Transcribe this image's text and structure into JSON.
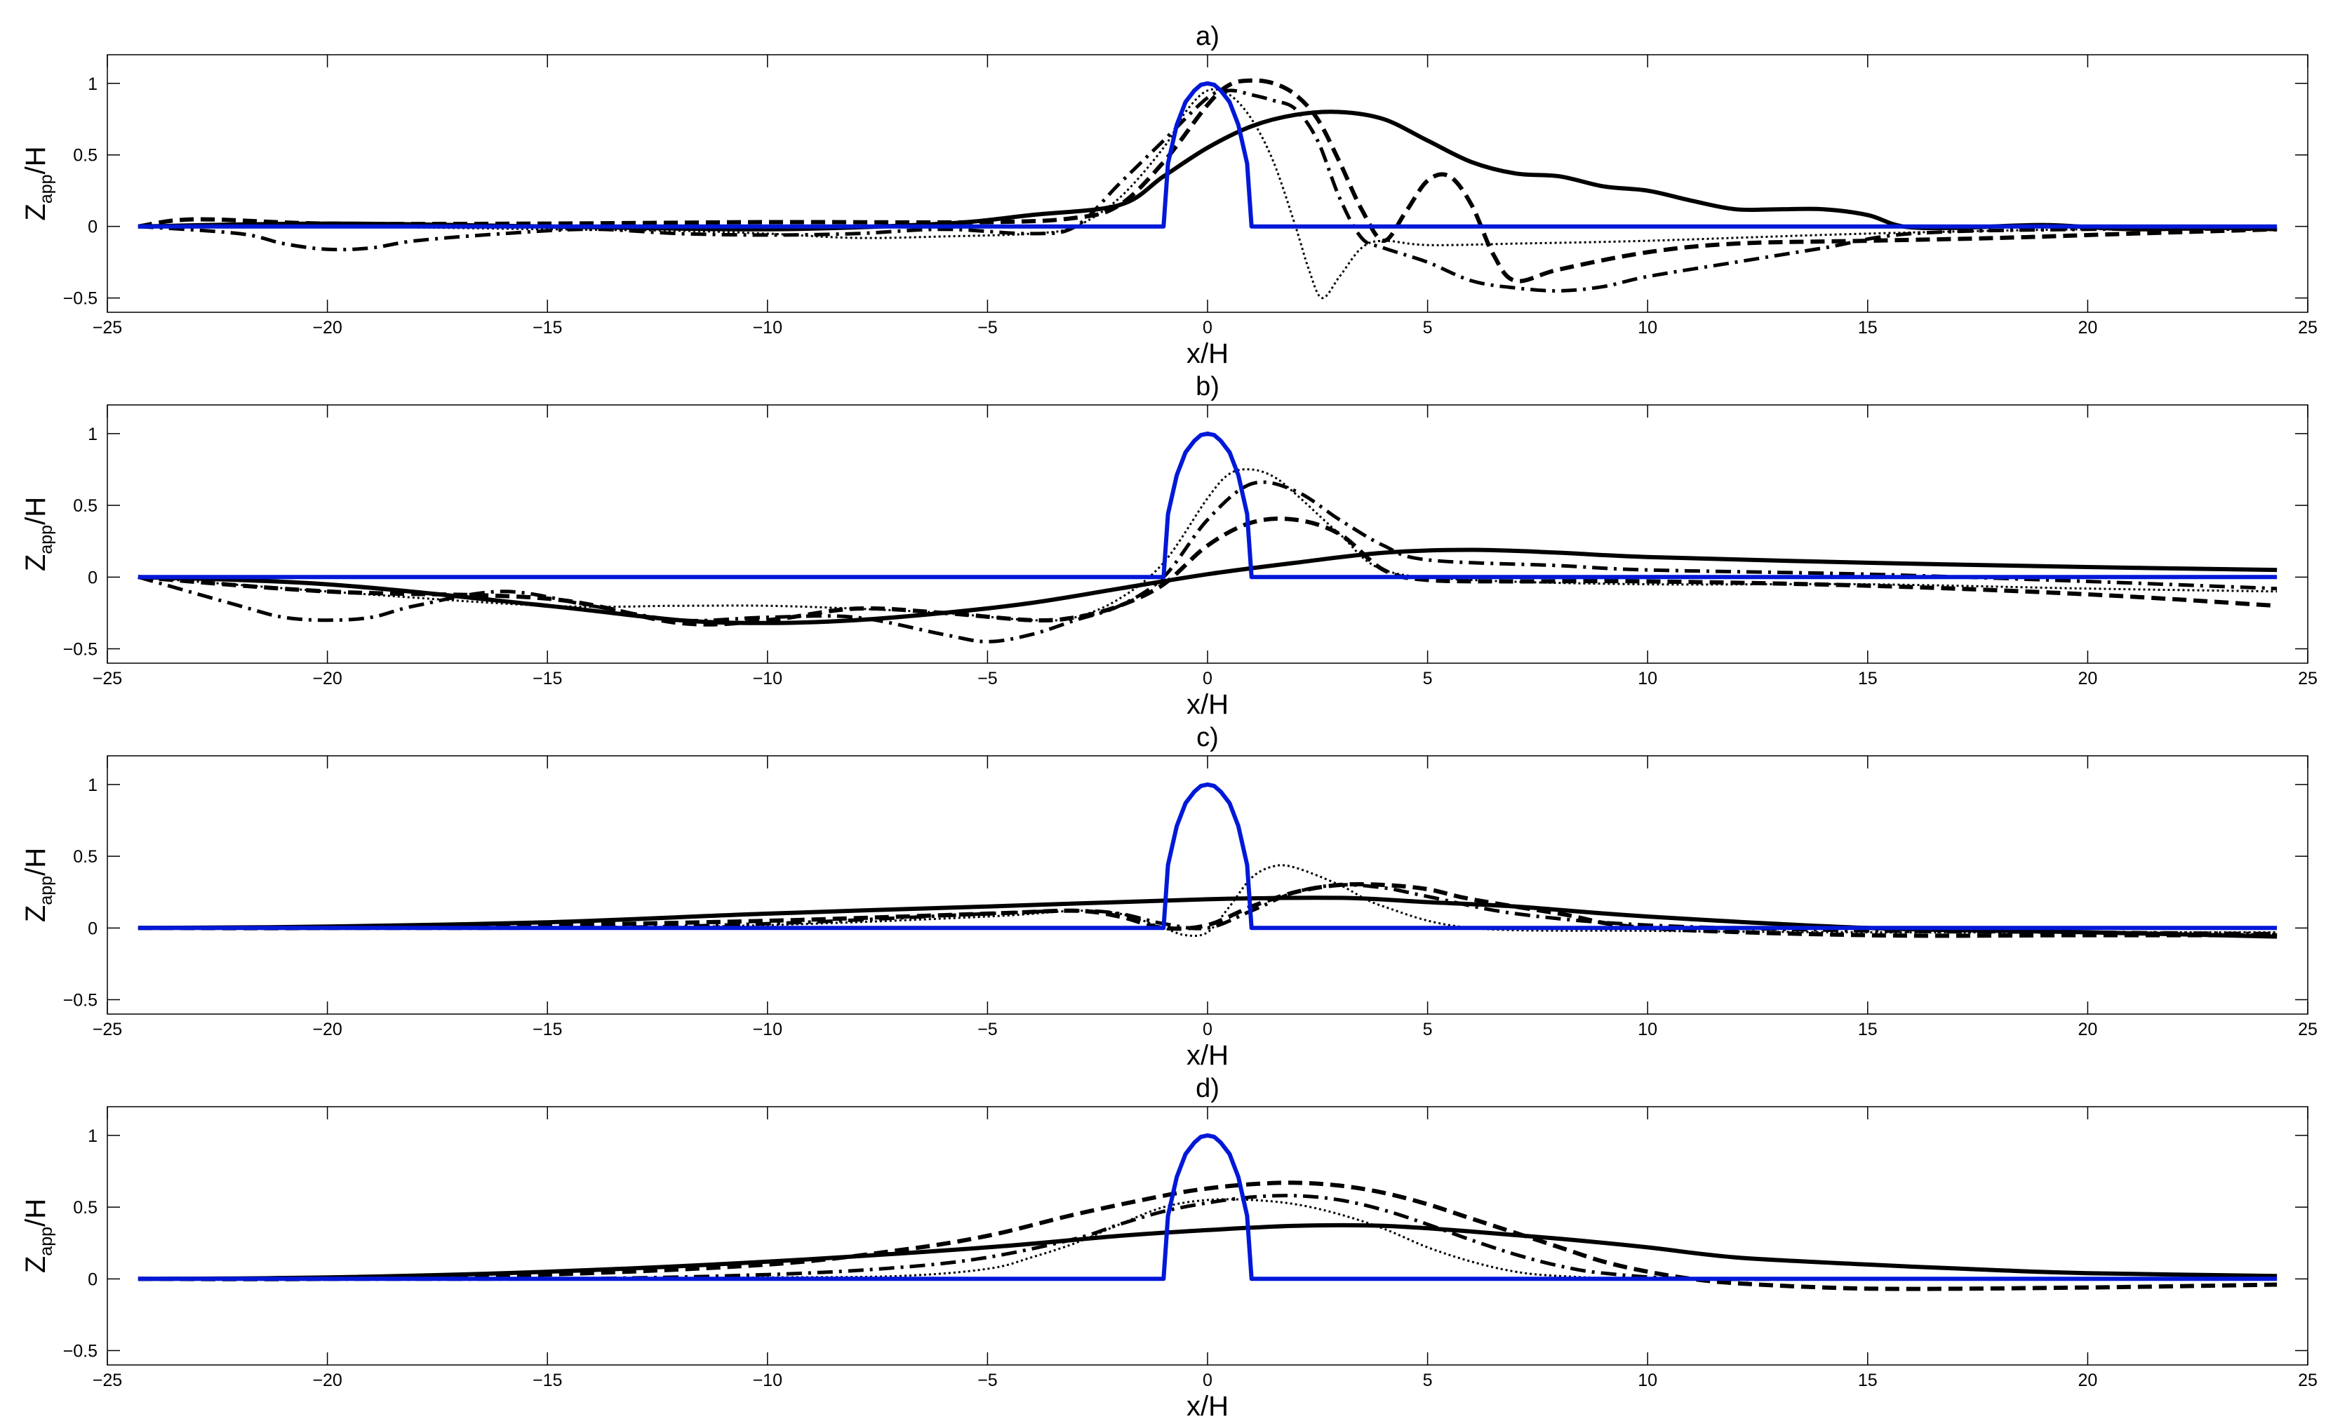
{
  "chart_data": [
    {
      "type": "line",
      "title": "a)",
      "xlabel": "x/H",
      "ylabel": "Z_app/H",
      "xlim": [
        -25,
        25
      ],
      "ylim": [
        -0.6,
        1.2
      ],
      "xticks": [
        -25,
        -20,
        -15,
        -10,
        -5,
        0,
        5,
        10,
        15,
        20,
        25
      ],
      "yticks": [
        -0.5,
        0,
        0.5,
        1
      ],
      "series": [
        {
          "name": "obstacle",
          "style": "blue",
          "x": [
            -24.3,
            -1.05,
            -1,
            -0.9,
            -0.7,
            -0.5,
            -0.3,
            -0.15,
            0,
            0.15,
            0.3,
            0.5,
            0.7,
            0.9,
            1,
            1.05,
            24.3
          ],
          "y": [
            0,
            0,
            0,
            0.44,
            0.71,
            0.87,
            0.95,
            0.99,
            1,
            0.99,
            0.95,
            0.87,
            0.71,
            0.44,
            0,
            0,
            0
          ]
        },
        {
          "name": "solid",
          "style": "solid",
          "x": [
            -24.3,
            -20,
            -15,
            -10,
            -6,
            -4,
            -2,
            -1,
            0,
            1,
            2,
            3,
            4,
            5,
            6,
            7,
            8,
            9,
            10,
            11,
            12,
            13,
            14,
            15,
            15.8,
            17,
            19,
            21,
            23,
            24.3
          ],
          "y": [
            0,
            0.02,
            0,
            -0.02,
            0.02,
            0.08,
            0.15,
            0.35,
            0.55,
            0.7,
            0.78,
            0.8,
            0.75,
            0.6,
            0.45,
            0.37,
            0.35,
            0.28,
            0.25,
            0.18,
            0.12,
            0.12,
            0.12,
            0.08,
            0,
            -0.01,
            0.01,
            -0.02,
            -0.01,
            -0.02
          ]
        },
        {
          "name": "dashed",
          "style": "dashed",
          "x": [
            -24.3,
            -23,
            -20,
            -15,
            -10,
            -5,
            -3,
            -2,
            -1,
            0,
            0.5,
            1,
            1.5,
            2,
            2.5,
            3,
            3.5,
            4,
            4.5,
            5,
            5.5,
            6,
            6.5,
            7,
            8,
            10,
            12,
            15,
            18,
            21,
            24.3
          ],
          "y": [
            0,
            0.05,
            0.02,
            0.02,
            0.03,
            0.03,
            0.06,
            0.15,
            0.45,
            0.85,
            0.99,
            1.02,
            1.0,
            0.92,
            0.75,
            0.45,
            0.12,
            -0.1,
            0.1,
            0.32,
            0.35,
            0.15,
            -0.2,
            -0.38,
            -0.3,
            -0.18,
            -0.12,
            -0.1,
            -0.08,
            -0.05,
            -0.02
          ]
        },
        {
          "name": "dotted",
          "style": "dotted",
          "x": [
            -24.3,
            -20,
            -15,
            -12,
            -10,
            -8,
            -6,
            -4,
            -3,
            -2,
            -1,
            -0.5,
            0,
            0.5,
            1,
            1.5,
            2,
            2.3,
            2.6,
            3,
            3.5,
            4,
            5,
            7,
            10,
            15,
            20,
            24.3
          ],
          "y": [
            0,
            0,
            -0.02,
            -0.03,
            -0.05,
            -0.08,
            -0.07,
            -0.05,
            0.0,
            0.2,
            0.55,
            0.8,
            0.95,
            0.92,
            0.75,
            0.45,
            0.0,
            -0.3,
            -0.5,
            -0.35,
            -0.15,
            -0.1,
            -0.13,
            -0.12,
            -0.1,
            -0.05,
            -0.02,
            -0.02
          ]
        },
        {
          "name": "dash-dot",
          "style": "dashdot",
          "x": [
            -24.3,
            -22,
            -21,
            -20,
            -19,
            -18,
            -16,
            -14,
            -12,
            -10,
            -8,
            -6,
            -4,
            -3,
            -2,
            -1,
            0,
            0.5,
            1,
            1.5,
            2,
            2.5,
            3,
            3.5,
            4,
            5,
            6,
            7,
            8,
            9,
            10,
            12,
            14,
            16,
            20,
            24.3
          ],
          "y": [
            0,
            -0.05,
            -0.12,
            -0.16,
            -0.15,
            -0.1,
            -0.05,
            -0.02,
            -0.05,
            -0.06,
            -0.05,
            -0.02,
            -0.05,
            0.0,
            0.3,
            0.6,
            0.9,
            0.95,
            0.92,
            0.88,
            0.82,
            0.6,
            0.2,
            -0.08,
            -0.15,
            -0.25,
            -0.38,
            -0.43,
            -0.45,
            -0.42,
            -0.35,
            -0.25,
            -0.15,
            -0.05,
            -0.02,
            -0.02
          ]
        }
      ]
    },
    {
      "type": "line",
      "title": "b)",
      "xlabel": "x/H",
      "ylabel": "Z_app/H",
      "xlim": [
        -25,
        25
      ],
      "ylim": [
        -0.6,
        1.2
      ],
      "xticks": [
        -25,
        -20,
        -15,
        -10,
        -5,
        0,
        5,
        10,
        15,
        20,
        25
      ],
      "yticks": [
        -0.5,
        0,
        0.5,
        1
      ],
      "series": [
        {
          "name": "obstacle",
          "style": "blue",
          "x": [
            -24.3,
            -1.05,
            -1,
            -0.9,
            -0.7,
            -0.5,
            -0.3,
            -0.15,
            0,
            0.15,
            0.3,
            0.5,
            0.7,
            0.9,
            1,
            1.05,
            24.3
          ],
          "y": [
            0,
            0,
            0,
            0.44,
            0.71,
            0.87,
            0.95,
            0.99,
            1,
            0.99,
            0.95,
            0.87,
            0.71,
            0.44,
            0,
            0,
            0
          ]
        },
        {
          "name": "solid",
          "style": "solid",
          "x": [
            -24.3,
            -20,
            -15,
            -12,
            -10,
            -8,
            -6,
            -4,
            -2,
            0,
            2,
            4,
            6,
            8,
            10,
            15,
            20,
            24.3
          ],
          "y": [
            0,
            -0.05,
            -0.2,
            -0.3,
            -0.32,
            -0.3,
            -0.25,
            -0.18,
            -0.08,
            0.02,
            0.1,
            0.17,
            0.19,
            0.17,
            0.14,
            0.1,
            0.07,
            0.05
          ]
        },
        {
          "name": "dashed",
          "style": "dashed",
          "x": [
            -24.3,
            -20,
            -15,
            -12,
            -10,
            -8,
            -6,
            -4,
            -3,
            -2,
            -1,
            0,
            1,
            2,
            3,
            4,
            5,
            7,
            10,
            15,
            20,
            24.3
          ],
          "y": [
            0,
            -0.1,
            -0.15,
            -0.32,
            -0.3,
            -0.22,
            -0.25,
            -0.3,
            -0.28,
            -0.2,
            -0.05,
            0.22,
            0.38,
            0.4,
            0.3,
            0.05,
            -0.02,
            -0.03,
            -0.03,
            -0.06,
            -0.12,
            -0.2
          ]
        },
        {
          "name": "dotted",
          "style": "dotted",
          "x": [
            -24.3,
            -20,
            -15,
            -12,
            -10,
            -8,
            -6,
            -4,
            -3,
            -2,
            -1,
            0,
            0.5,
            1,
            1.5,
            2,
            3,
            4,
            6,
            10,
            15,
            20,
            24.3
          ],
          "y": [
            0,
            -0.1,
            -0.2,
            -0.2,
            -0.2,
            -0.22,
            -0.25,
            -0.3,
            -0.28,
            -0.15,
            0.1,
            0.55,
            0.72,
            0.75,
            0.7,
            0.58,
            0.3,
            0.05,
            -0.02,
            -0.05,
            -0.05,
            -0.08,
            -0.1
          ]
        },
        {
          "name": "dash-dot",
          "style": "dashdot",
          "x": [
            -24.3,
            -22,
            -21,
            -20,
            -19,
            -18,
            -16,
            -14,
            -12,
            -10,
            -8,
            -6,
            -5,
            -4,
            -3,
            -2,
            -1,
            0,
            1,
            2,
            3,
            4,
            5,
            8,
            10,
            15,
            20,
            24.3
          ],
          "y": [
            0,
            -0.2,
            -0.28,
            -0.3,
            -0.28,
            -0.2,
            -0.1,
            -0.2,
            -0.3,
            -0.28,
            -0.28,
            -0.4,
            -0.45,
            -0.4,
            -0.3,
            -0.2,
            0.0,
            0.4,
            0.65,
            0.6,
            0.4,
            0.22,
            0.12,
            0.08,
            0.05,
            0.02,
            -0.03,
            -0.08
          ]
        }
      ]
    },
    {
      "type": "line",
      "title": "c)",
      "xlabel": "x/H",
      "ylabel": "Z_app/H",
      "xlim": [
        -25,
        25
      ],
      "ylim": [
        -0.6,
        1.2
      ],
      "xticks": [
        -25,
        -20,
        -15,
        -10,
        -5,
        0,
        5,
        10,
        15,
        20,
        25
      ],
      "yticks": [
        -0.5,
        0,
        0.5,
        1
      ],
      "series": [
        {
          "name": "obstacle",
          "style": "blue",
          "x": [
            -24.3,
            -1.05,
            -1,
            -0.9,
            -0.7,
            -0.5,
            -0.3,
            -0.15,
            0,
            0.15,
            0.3,
            0.5,
            0.7,
            0.9,
            1,
            1.05,
            24.3
          ],
          "y": [
            0,
            0,
            0,
            0.44,
            0.71,
            0.87,
            0.95,
            0.99,
            1,
            0.99,
            0.95,
            0.87,
            0.71,
            0.44,
            0,
            0,
            0
          ]
        },
        {
          "name": "solid",
          "style": "solid",
          "x": [
            -24.3,
            -20,
            -15,
            -10,
            -5,
            0,
            3,
            5,
            7,
            10,
            15,
            20,
            24.3
          ],
          "y": [
            0,
            0.01,
            0.04,
            0.1,
            0.15,
            0.2,
            0.21,
            0.18,
            0.15,
            0.08,
            0.0,
            -0.03,
            -0.06
          ]
        },
        {
          "name": "dashed",
          "style": "dashed",
          "x": [
            -24.3,
            -20,
            -15,
            -10,
            -5,
            -3,
            -2,
            -1,
            0,
            1,
            2,
            3,
            4,
            5,
            6,
            8,
            10,
            15,
            20,
            24.3
          ],
          "y": [
            0,
            0.0,
            0.02,
            0.05,
            0.1,
            0.12,
            0.08,
            0.0,
            0.02,
            0.15,
            0.25,
            0.3,
            0.3,
            0.27,
            0.2,
            0.1,
            0.0,
            -0.05,
            -0.05,
            -0.05
          ]
        },
        {
          "name": "dotted",
          "style": "dotted",
          "x": [
            -24.3,
            -15,
            -10,
            -5,
            -3,
            -2,
            -1,
            -0.5,
            0,
            0.5,
            1,
            1.5,
            2,
            3,
            4,
            6,
            10,
            15,
            20,
            24.3
          ],
          "y": [
            0,
            0.0,
            0.02,
            0.08,
            0.12,
            0.1,
            0.0,
            -0.05,
            -0.03,
            0.15,
            0.35,
            0.43,
            0.42,
            0.3,
            0.15,
            0.0,
            -0.02,
            -0.03,
            -0.03,
            -0.03
          ]
        },
        {
          "name": "dash-dot",
          "style": "dashdot",
          "x": [
            -24.3,
            -15,
            -10,
            -5,
            -3,
            -2,
            -1,
            0,
            1,
            2,
            3,
            4,
            5,
            7,
            10,
            15,
            20,
            24.3
          ],
          "y": [
            0,
            0.0,
            0.03,
            0.1,
            0.12,
            0.1,
            0.03,
            0.0,
            0.12,
            0.25,
            0.3,
            0.28,
            0.22,
            0.1,
            0.02,
            -0.02,
            -0.03,
            -0.04
          ]
        }
      ]
    },
    {
      "type": "line",
      "title": "d)",
      "xlabel": "x/H",
      "ylabel": "Z_app/H",
      "xlim": [
        -25,
        25
      ],
      "ylim": [
        -0.6,
        1.2
      ],
      "xticks": [
        -25,
        -20,
        -15,
        -10,
        -5,
        0,
        5,
        10,
        15,
        20,
        25
      ],
      "yticks": [
        -0.5,
        0,
        0.5,
        1
      ],
      "series": [
        {
          "name": "obstacle",
          "style": "blue",
          "x": [
            -24.3,
            -1.05,
            -1,
            -0.9,
            -0.7,
            -0.5,
            -0.3,
            -0.15,
            0,
            0.15,
            0.3,
            0.5,
            0.7,
            0.9,
            1,
            1.05,
            24.3
          ],
          "y": [
            0,
            0,
            0,
            0.44,
            0.71,
            0.87,
            0.95,
            0.99,
            1,
            0.99,
            0.95,
            0.87,
            0.71,
            0.44,
            0,
            0,
            0
          ]
        },
        {
          "name": "solid",
          "style": "solid",
          "x": [
            -24.3,
            -20,
            -15,
            -10,
            -5,
            -2,
            0,
            2,
            4,
            6,
            8,
            10,
            12,
            15,
            18,
            20,
            24.3
          ],
          "y": [
            0,
            0.01,
            0.05,
            0.12,
            0.22,
            0.3,
            0.34,
            0.37,
            0.37,
            0.33,
            0.28,
            0.22,
            0.15,
            0.1,
            0.06,
            0.04,
            0.02
          ]
        },
        {
          "name": "dashed",
          "style": "dashed",
          "x": [
            -24.3,
            -20,
            -15,
            -10,
            -7,
            -5,
            -3,
            -1,
            0,
            1,
            2,
            3,
            4,
            5,
            6,
            7,
            8,
            9,
            10,
            11,
            12,
            14,
            16,
            20,
            24.3
          ],
          "y": [
            0,
            0.0,
            0.03,
            0.1,
            0.2,
            0.3,
            0.45,
            0.58,
            0.63,
            0.66,
            0.67,
            0.65,
            0.6,
            0.52,
            0.42,
            0.32,
            0.22,
            0.12,
            0.05,
            0.0,
            -0.03,
            -0.06,
            -0.07,
            -0.06,
            -0.04
          ]
        },
        {
          "name": "dotted",
          "style": "dotted",
          "x": [
            -24.3,
            -15,
            -10,
            -7,
            -5,
            -4,
            -3,
            -2,
            -1,
            0,
            1,
            2,
            3,
            4,
            5,
            6,
            7,
            8,
            10,
            15,
            24.3
          ],
          "y": [
            0,
            0.0,
            0.01,
            0.02,
            0.07,
            0.15,
            0.25,
            0.38,
            0.5,
            0.55,
            0.55,
            0.52,
            0.45,
            0.35,
            0.22,
            0.12,
            0.05,
            0.02,
            0.0,
            0.0,
            0.0
          ]
        },
        {
          "name": "dash-dot",
          "style": "dashdot",
          "x": [
            -24.3,
            -15,
            -10,
            -7,
            -5,
            -3,
            -2,
            -1,
            0,
            1,
            2,
            3,
            4,
            5,
            6,
            7,
            8,
            9,
            11,
            15,
            24.3
          ],
          "y": [
            0,
            0.0,
            0.03,
            0.08,
            0.15,
            0.28,
            0.38,
            0.47,
            0.53,
            0.57,
            0.58,
            0.55,
            0.48,
            0.38,
            0.27,
            0.17,
            0.09,
            0.04,
            0.0,
            0.0,
            0.0
          ]
        }
      ]
    }
  ]
}
